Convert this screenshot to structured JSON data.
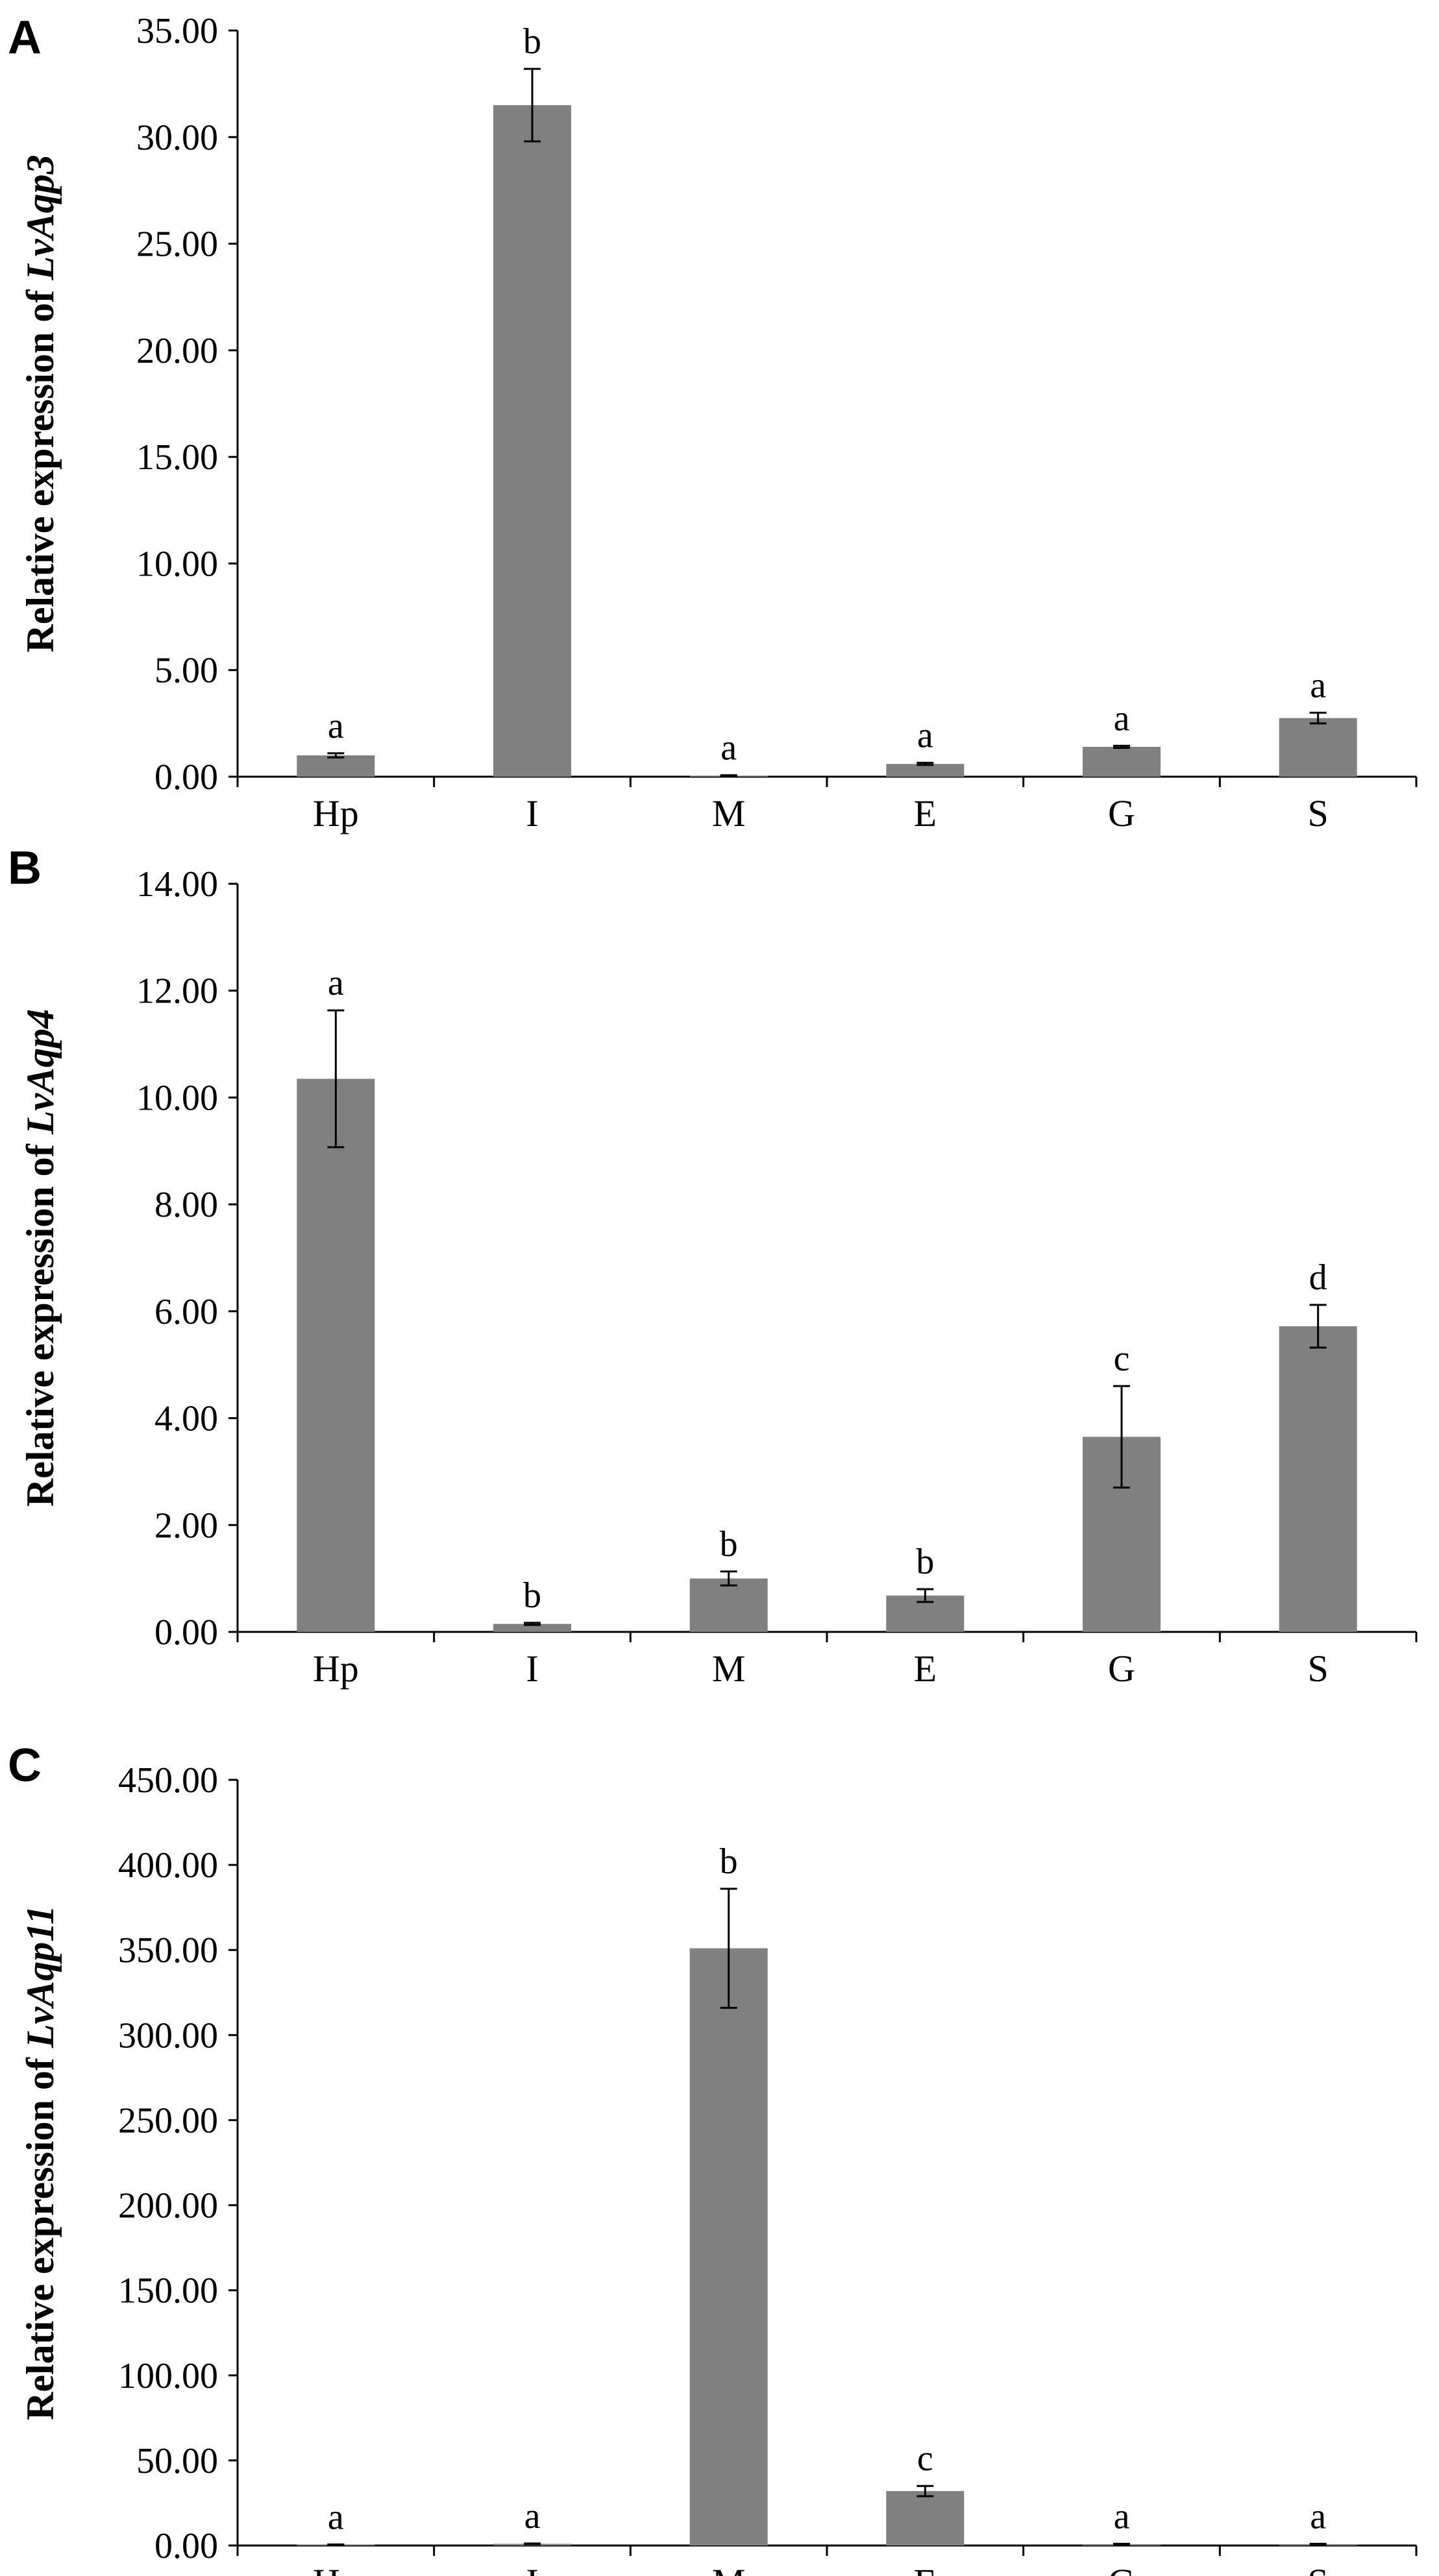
{
  "colors": {
    "bar": "#808080",
    "axis": "#000000",
    "background": "#ffffff"
  },
  "chart_data": [
    {
      "type": "bar",
      "panel": "A",
      "title": "",
      "xlabel": "",
      "ylabel_prefix": "Relative expression of ",
      "ylabel_gene": "LvAqp3",
      "categories": [
        "Hp",
        "I",
        "M",
        "E",
        "G",
        "S"
      ],
      "values": [
        1.0,
        31.5,
        0.05,
        0.6,
        1.4,
        2.75
      ],
      "errors": [
        0.1,
        1.7,
        0.02,
        0.05,
        0.05,
        0.25
      ],
      "significance": [
        "a",
        "b",
        "a",
        "a",
        "a",
        "a"
      ],
      "ylim": [
        0,
        35
      ],
      "yticks": [
        "0.00",
        "5.00",
        "10.00",
        "15.00",
        "20.00",
        "25.00",
        "30.00",
        "35.00"
      ],
      "grid": false
    },
    {
      "type": "bar",
      "panel": "B",
      "title": "",
      "xlabel": "",
      "ylabel_prefix": "Relative expression of ",
      "ylabel_gene": "LvAqp4",
      "categories": [
        "Hp",
        "I",
        "M",
        "E",
        "G",
        "S"
      ],
      "values": [
        10.35,
        0.15,
        1.0,
        0.68,
        3.65,
        5.72
      ],
      "errors": [
        1.28,
        0.02,
        0.13,
        0.12,
        0.95,
        0.4
      ],
      "significance": [
        "a",
        "b",
        "b",
        "b",
        "c",
        "d"
      ],
      "ylim": [
        0,
        14
      ],
      "yticks": [
        "0.00",
        "2.00",
        "4.00",
        "6.00",
        "8.00",
        "10.00",
        "12.00",
        "14.00"
      ],
      "grid": false
    },
    {
      "type": "bar",
      "panel": "C",
      "title": "",
      "xlabel": "",
      "ylabel_prefix": "Relative expression of ",
      "ylabel_gene": "LvAqp11",
      "categories": [
        "Hp",
        "I",
        "M",
        "E",
        "G",
        "S"
      ],
      "values": [
        0.5,
        1.0,
        351.0,
        32.0,
        0.8,
        0.8
      ],
      "errors": [
        0.1,
        0.2,
        35.0,
        3.0,
        0.2,
        0.2
      ],
      "significance": [
        "a",
        "a",
        "b",
        "c",
        "a",
        "a"
      ],
      "ylim": [
        0,
        450
      ],
      "yticks": [
        "0.00",
        "50.00",
        "100.00",
        "150.00",
        "200.00",
        "250.00",
        "300.00",
        "350.00",
        "400.00",
        "450.00"
      ],
      "grid": false
    }
  ]
}
